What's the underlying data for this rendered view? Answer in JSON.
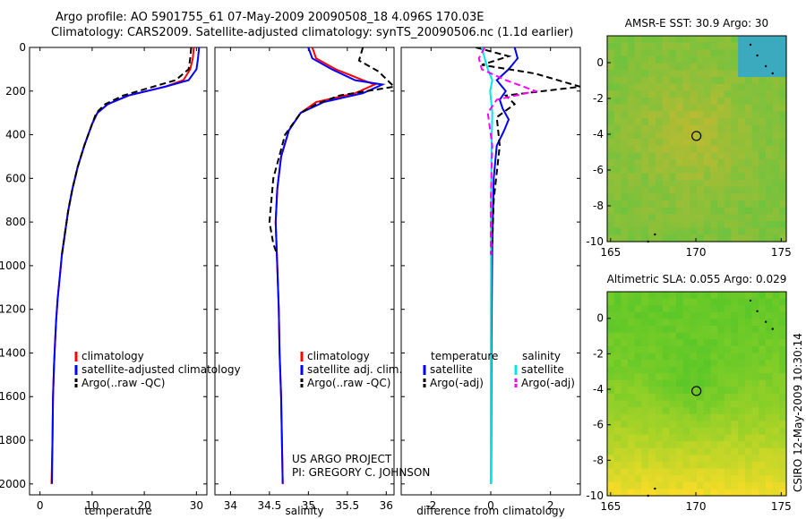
{
  "header": {
    "title_line1": "Argo profile: AO 5901755_61 07-May-2009 20090508_18 4.096S 170.03E",
    "title_line2": "Climatology: CARS2009. Satellite-adjusted climatology: synTS_20090506.nc (1.1d earlier)"
  },
  "footer": {
    "credit_line1": "US ARGO PROJECT",
    "credit_line2": "PI: GREGORY C. JOHNSON",
    "timestamp": "CSIRO 12-May-2009 10:30:14"
  },
  "colors": {
    "climatology": "#ff0000",
    "satellite": "#0000ff",
    "argo": "#000000",
    "sal_satellite": "#00e5ee",
    "sal_argo": "#ff00ff"
  },
  "chart_data": [
    {
      "type": "line",
      "name": "temperature-profile",
      "xlabel": "temperature",
      "ylabel": "",
      "xlim": [
        -2,
        32
      ],
      "ylim": [
        2050,
        0
      ],
      "xticks": [
        0,
        10,
        20,
        30
      ],
      "yticks": [
        0,
        200,
        400,
        600,
        800,
        1000,
        1200,
        1400,
        1600,
        1800,
        2000
      ],
      "legend": [
        "climatology",
        "satellite-adjusted climatology",
        "Argo(..raw -QC)"
      ],
      "series": [
        {
          "name": "climatology",
          "color": "#ff0000",
          "dash": false,
          "x": [
            29.5,
            29.3,
            28.8,
            27.5,
            24,
            17,
            13,
            11,
            10,
            8.5,
            7.2,
            6.2,
            5.4,
            4.8,
            4.2,
            3.8,
            3.4,
            3.1,
            2.9,
            2.7,
            2.5,
            2.4,
            2.2
          ],
          "y": [
            0,
            50,
            100,
            150,
            180,
            220,
            260,
            300,
            350,
            450,
            550,
            650,
            750,
            850,
            950,
            1050,
            1150,
            1250,
            1350,
            1450,
            1600,
            1800,
            2000
          ]
        },
        {
          "name": "satellite-adjusted climatology",
          "color": "#0000ff",
          "dash": false,
          "x": [
            30.5,
            30.3,
            30,
            28.5,
            24,
            17,
            13,
            11,
            10,
            8.5,
            7.2,
            6.2,
            5.4,
            4.8,
            4.2,
            3.8,
            3.4,
            3.1,
            2.9,
            2.7,
            2.5,
            2.4,
            2.3
          ],
          "y": [
            0,
            50,
            100,
            150,
            180,
            220,
            260,
            300,
            350,
            450,
            550,
            650,
            750,
            850,
            950,
            1050,
            1150,
            1250,
            1350,
            1450,
            1600,
            1800,
            2000
          ]
        },
        {
          "name": "Argo(..raw -QC)",
          "color": "#000000",
          "dash": true,
          "x": [
            29,
            28.8,
            28.5,
            26,
            21,
            16,
            12.5,
            10.8,
            10,
            8.5,
            7.2,
            6.2,
            5.4,
            4.8,
            4.2
          ],
          "y": [
            0,
            50,
            100,
            150,
            185,
            220,
            260,
            300,
            350,
            450,
            550,
            650,
            750,
            850,
            950
          ]
        }
      ]
    },
    {
      "type": "line",
      "name": "salinity-profile",
      "xlabel": "salinity",
      "ylabel": "",
      "xlim": [
        33.8,
        36.1
      ],
      "ylim": [
        2050,
        0
      ],
      "xticks": [
        34,
        34.5,
        35,
        35.5,
        36
      ],
      "xticklabels": [
        "34",
        "34.5",
        "35",
        "35.5",
        "36"
      ],
      "legend": [
        "climatology",
        "satellite adj. clim.",
        "Argo(..raw -QC)"
      ],
      "series": [
        {
          "name": "climatology",
          "color": "#ff0000",
          "dash": false,
          "x": [
            35.05,
            35.1,
            35.35,
            35.7,
            35.85,
            35.6,
            35.1,
            34.9,
            34.75,
            34.65,
            34.6,
            34.58,
            34.6,
            34.62,
            34.63,
            34.65,
            34.66,
            34.67
          ],
          "y": [
            0,
            50,
            100,
            150,
            170,
            210,
            250,
            300,
            380,
            500,
            650,
            800,
            1000,
            1200,
            1400,
            1600,
            1800,
            2000
          ]
        },
        {
          "name": "satellite adj. clim.",
          "color": "#0000ff",
          "dash": false,
          "x": [
            35,
            35.05,
            35.3,
            35.6,
            35.95,
            35.7,
            35.2,
            34.9,
            34.75,
            34.65,
            34.6,
            34.58,
            34.6,
            34.62,
            34.63,
            34.65,
            34.66,
            34.67
          ],
          "y": [
            0,
            50,
            100,
            150,
            170,
            210,
            250,
            300,
            380,
            500,
            650,
            800,
            1000,
            1200,
            1400,
            1600,
            1800,
            2000
          ]
        },
        {
          "name": "Argo(..raw -QC)",
          "color": "#000000",
          "dash": true,
          "x": [
            35.7,
            35.65,
            35.9,
            36.1,
            35.4,
            35.1,
            34.9,
            34.7,
            34.55,
            34.5,
            34.55,
            34.6
          ],
          "y": [
            0,
            60,
            110,
            180,
            220,
            260,
            300,
            400,
            600,
            800,
            900,
            950
          ]
        }
      ]
    },
    {
      "type": "line",
      "name": "difference-from-climatology",
      "xlabel": "difference from climatology",
      "ylabel": "",
      "xlim": [
        -3,
        3
      ],
      "ylim": [
        2050,
        0
      ],
      "xticks": [
        -2,
        0,
        2
      ],
      "legend": [
        "temperature",
        "salinity",
        "satellite",
        "Argo(-adj)"
      ],
      "series": [
        {
          "name": "temperature satellite",
          "color": "#0000ff",
          "dash": false,
          "x": [
            0.8,
            0.9,
            0.6,
            0.2,
            0.5,
            0.3,
            0.4,
            0.6,
            0.45,
            0.2,
            0.1,
            0.05,
            0.02,
            0.01
          ],
          "y": [
            0,
            50,
            100,
            150,
            200,
            240,
            280,
            330,
            380,
            450,
            600,
            900,
            1400,
            2000
          ]
        },
        {
          "name": "temperature Argo(-adj)",
          "color": "#000000",
          "dash": true,
          "x": [
            -0.5,
            0.6,
            -0.3,
            1.5,
            3,
            0.5,
            0.8,
            0.2,
            0.3,
            0.1,
            0.05,
            0.02
          ],
          "y": [
            0,
            40,
            80,
            120,
            180,
            220,
            260,
            320,
            450,
            700,
            900,
            950
          ]
        },
        {
          "name": "salinity satellite",
          "color": "#00e5ee",
          "dash": false,
          "x": [
            -0.3,
            -0.2,
            -0.1,
            0.05,
            -0.02,
            0.05,
            0.02,
            0.01,
            0,
            0
          ],
          "y": [
            0,
            50,
            100,
            150,
            200,
            300,
            500,
            800,
            1400,
            2000
          ]
        },
        {
          "name": "salinity Argo(-adj)",
          "color": "#ff00ff",
          "dash": true,
          "x": [
            -0.2,
            -0.4,
            -0.3,
            0.5,
            1.5,
            0.2,
            -0.1,
            0.05,
            0,
            0
          ],
          "y": [
            0,
            50,
            100,
            150,
            200,
            240,
            300,
            450,
            700,
            950
          ]
        }
      ]
    }
  ],
  "maps": [
    {
      "name": "sst-map",
      "title": "AMSR-E SST: 30.9 Argo: 30",
      "xlim": [
        164.8,
        175.3
      ],
      "ylim": [
        -10,
        1.5
      ],
      "xticks": [
        165,
        170,
        175
      ],
      "yticks": [
        0,
        -2,
        -4,
        -6,
        -8,
        -10
      ],
      "marker": {
        "lon": 170.03,
        "lat": -4.096
      }
    },
    {
      "name": "sla-map",
      "title": "Altimetric SLA: 0.055 Argo: 0.029",
      "xlim": [
        164.8,
        175.3
      ],
      "ylim": [
        -10,
        1.5
      ],
      "xticks": [
        165,
        170,
        175
      ],
      "yticks": [
        0,
        -2,
        -4,
        -6,
        -8,
        -10
      ],
      "marker": {
        "lon": 170.03,
        "lat": -4.096
      }
    }
  ]
}
